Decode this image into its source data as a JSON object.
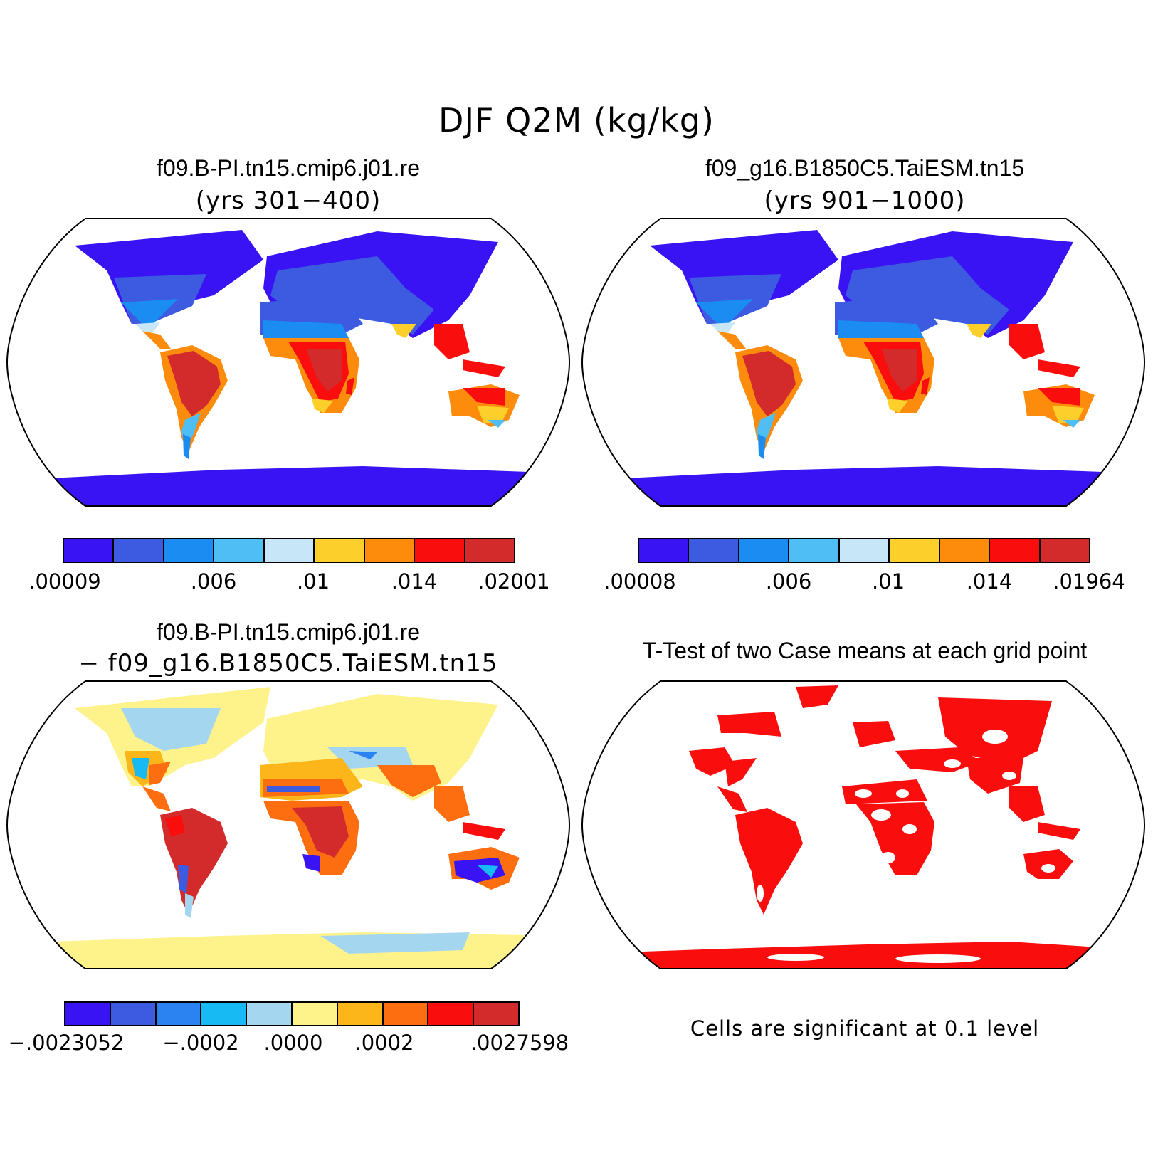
{
  "main_title": "DJF Q2M (kg/kg)",
  "panels": [
    {
      "title": "f09.B-PI.tn15.cmip6.j01.re",
      "subtitle": "(yrs 301−400)",
      "colorbar": {
        "colors": [
          "#3a13f5",
          "#3c5be0",
          "#1a8cf2",
          "#4ebef4",
          "#c7e6f7",
          "#fdcf2a",
          "#fd8c0d",
          "#fa0d0d",
          "#d32b2b"
        ],
        "ticks": [
          ".00009",
          ".006",
          ".01",
          ".014",
          ".02001"
        ]
      }
    },
    {
      "title": "f09_g16.B1850C5.TaiESM.tn15",
      "subtitle": "(yrs 901−1000)",
      "colorbar": {
        "colors": [
          "#3a13f5",
          "#3c5be0",
          "#1a8cf2",
          "#4ebef4",
          "#c7e6f7",
          "#fdcf2a",
          "#fd8c0d",
          "#fa0d0d",
          "#d32b2b"
        ],
        "ticks": [
          ".00008",
          ".006",
          ".01",
          ".014",
          ".01964"
        ]
      }
    },
    {
      "title": "f09.B-PI.tn15.cmip6.j01.re",
      "subtitle": "− f09_g16.B1850C5.TaiESM.tn15",
      "colorbar": {
        "colors": [
          "#3a13f5",
          "#3c5be0",
          "#2b83f2",
          "#17baf2",
          "#a5d6f0",
          "#fef38a",
          "#fdb61a",
          "#fc6e0f",
          "#fa0d0d",
          "#d32b2b"
        ],
        "ticks": [
          "−.0023052",
          "−.0002",
          ".0000",
          ".0002",
          ".0027598"
        ]
      }
    },
    {
      "title": "T-Test of two Case means at each grid point",
      "note": "Cells are significant at 0.1 level",
      "significant_color": "#fa0d0d"
    }
  ]
}
